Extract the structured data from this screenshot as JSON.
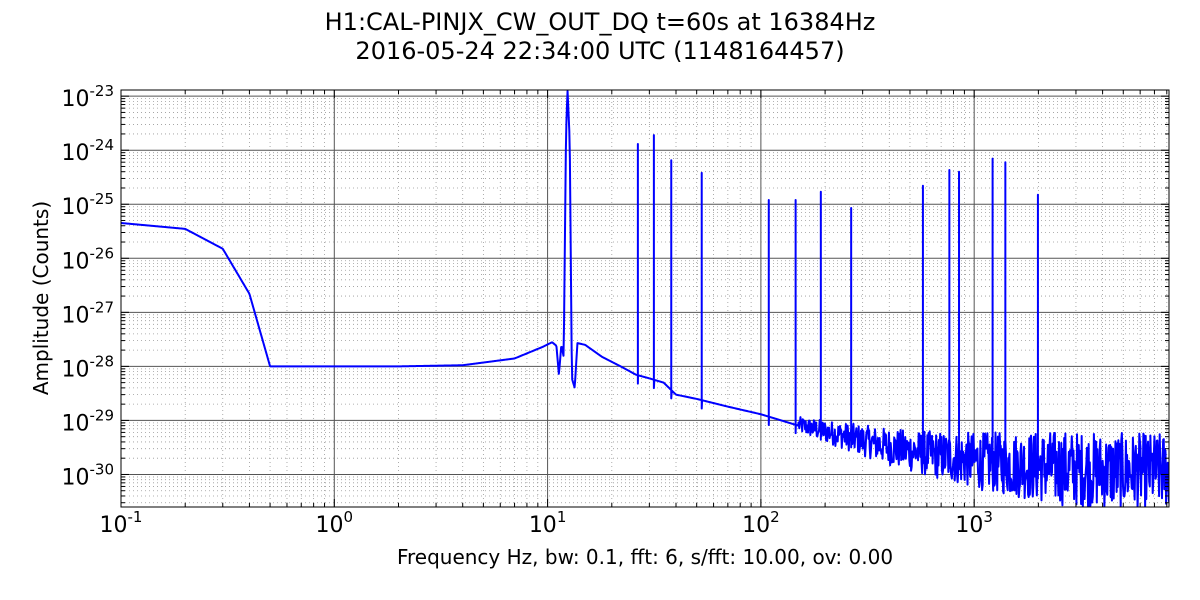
{
  "chart_data": {
    "type": "line",
    "title": "H1:CAL-PINJX_CW_OUT_DQ t=60s at 16384Hz",
    "subtitle": "2016-05-24 22:34:00 UTC (1148164457)",
    "xlabel": "Frequency Hz,  bw: 0.1, fft: 6, s/fft: 10.00, ov: 0.00",
    "ylabel": "Amplitude (Counts)",
    "x_scale": "log",
    "y_scale": "log",
    "xlim": [
      0.1,
      8192
    ],
    "ylim": [
      2.5e-31,
      1.3e-23
    ],
    "grid": true,
    "x_tick_labels": [
      {
        "base": "10",
        "exp": "-1",
        "value": 0.1
      },
      {
        "base": "10",
        "exp": "0",
        "value": 1
      },
      {
        "base": "10",
        "exp": "1",
        "value": 10
      },
      {
        "base": "10",
        "exp": "2",
        "value": 100
      },
      {
        "base": "10",
        "exp": "3",
        "value": 1000
      }
    ],
    "y_tick_labels": [
      {
        "base": "10",
        "exp": "-30",
        "value": 1e-30
      },
      {
        "base": "10",
        "exp": "-29",
        "value": 1e-29
      },
      {
        "base": "10",
        "exp": "-28",
        "value": 1e-28
      },
      {
        "base": "10",
        "exp": "-27",
        "value": 1e-27
      },
      {
        "base": "10",
        "exp": "-26",
        "value": 1e-26
      },
      {
        "base": "10",
        "exp": "-25",
        "value": 1e-25
      },
      {
        "base": "10",
        "exp": "-24",
        "value": 1e-24
      },
      {
        "base": "10",
        "exp": "-23",
        "value": 1e-23
      }
    ],
    "series": [
      {
        "color": "#0000ff",
        "baseline_points": [
          [
            0.1,
            4.5e-26
          ],
          [
            0.2,
            3.5e-26
          ],
          [
            0.3,
            1.5e-26
          ],
          [
            0.4,
            2.2e-27
          ],
          [
            0.5,
            1e-28
          ],
          [
            1.0,
            1e-28
          ],
          [
            2.0,
            1e-28
          ],
          [
            4.0,
            1.05e-28
          ],
          [
            7.0,
            1.4e-28
          ],
          [
            9.5,
            2.3e-28
          ],
          [
            10.5,
            2.8e-28
          ],
          [
            11.0,
            2.4e-28
          ],
          [
            11.3,
            7e-29
          ],
          [
            11.6,
            2.5e-28
          ],
          [
            11.9,
            1.5e-28
          ],
          [
            12.2,
            2e-24
          ],
          [
            12.4,
            1.3e-23
          ],
          [
            12.7,
            1.5e-24
          ],
          [
            13.0,
            6e-29
          ],
          [
            13.4,
            4e-29
          ],
          [
            13.8,
            2.7e-28
          ],
          [
            15.0,
            2.5e-28
          ],
          [
            18.0,
            1.5e-28
          ],
          [
            22.0,
            1e-28
          ],
          [
            26.0,
            7e-29
          ],
          [
            30.0,
            6e-29
          ],
          [
            35.0,
            5e-29
          ],
          [
            40.0,
            3e-29
          ],
          [
            50.0,
            2.5e-29
          ],
          [
            70.0,
            1.8e-29
          ],
          [
            100.0,
            1.3e-29
          ],
          [
            150.0,
            8e-30
          ],
          [
            200.0,
            6e-30
          ],
          [
            300.0,
            4e-30
          ],
          [
            400.0,
            3e-30
          ],
          [
            500.0,
            2.5e-30
          ],
          [
            700.0,
            2e-30
          ],
          [
            1000.0,
            1.6e-30
          ],
          [
            2000.0,
            1.2e-30
          ],
          [
            4000.0,
            1e-30
          ],
          [
            8192.0,
            1e-30
          ]
        ],
        "noise_from_hz": 150,
        "spikes": [
          {
            "x": 26.5,
            "y": 1.3e-24
          },
          {
            "x": 31.5,
            "y": 1.9e-24
          },
          {
            "x": 38.0,
            "y": 6.5e-25
          },
          {
            "x": 52.8,
            "y": 3.8e-25
          },
          {
            "x": 108.9,
            "y": 1.2e-25
          },
          {
            "x": 145.5,
            "y": 1.2e-25
          },
          {
            "x": 191.0,
            "y": 1.7e-25
          },
          {
            "x": 265.0,
            "y": 8.5e-26
          },
          {
            "x": 575.0,
            "y": 2.2e-25
          },
          {
            "x": 765.0,
            "y": 4.3e-25
          },
          {
            "x": 849.0,
            "y": 4e-25
          },
          {
            "x": 1220.0,
            "y": 7e-25
          },
          {
            "x": 1400.0,
            "y": 6e-25
          },
          {
            "x": 1990.0,
            "y": 1.5e-25
          }
        ]
      }
    ]
  }
}
